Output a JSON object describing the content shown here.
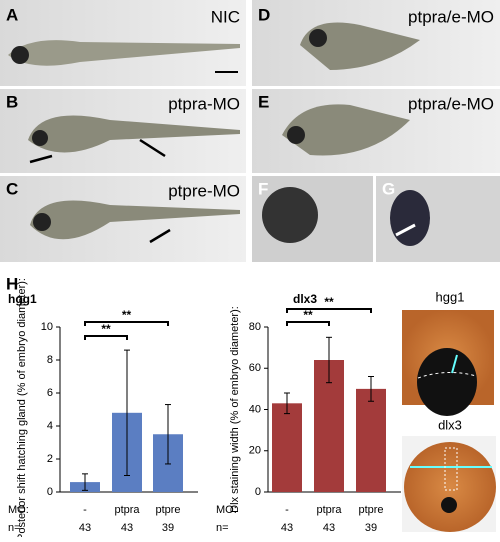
{
  "panels": [
    {
      "label": "A",
      "text": "NIC"
    },
    {
      "label": "B",
      "text": "ptpra-MO"
    },
    {
      "label": "C",
      "text": "ptpre-MO"
    },
    {
      "label": "D",
      "text": "ptpra/e-MO"
    },
    {
      "label": "E",
      "text": "ptpra/e-MO"
    },
    {
      "label": "F"
    },
    {
      "label": "G"
    }
  ],
  "figure_label": "H",
  "chart_data": [
    {
      "type": "bar",
      "title": "hgg1",
      "y_label": "Posterior shift hatching gland (% of embryo diameter):",
      "categories": [
        "-",
        "ptpra",
        "ptpre"
      ],
      "values": [
        0.6,
        4.8,
        3.5
      ],
      "errors": [
        0.5,
        3.8,
        1.8
      ],
      "color": "#5b7ec2",
      "ylim": [
        0,
        10
      ],
      "yticks": [
        0,
        2,
        4,
        6,
        8,
        10
      ],
      "annotations": [
        "**",
        "**"
      ],
      "x_row_label": "MO:",
      "n_label": "n=",
      "n": [
        "43",
        "43",
        "39"
      ]
    },
    {
      "type": "bar",
      "title": "dlx3",
      "y_label": "Dlx staining width (% of embryo diameter):",
      "categories": [
        "-",
        "ptpra",
        "ptpre"
      ],
      "values": [
        43,
        64,
        50
      ],
      "errors": [
        5,
        11,
        6
      ],
      "color": "#a33b3b",
      "ylim": [
        0,
        80
      ],
      "yticks": [
        0,
        20,
        40,
        60,
        80
      ],
      "annotations": [
        "**",
        "**"
      ],
      "x_row_label": "MO:",
      "n_label": "n=",
      "n": [
        "43",
        "43",
        "39"
      ]
    }
  ],
  "insets": [
    {
      "label": "hgg1"
    },
    {
      "label": "dlx3"
    }
  ]
}
